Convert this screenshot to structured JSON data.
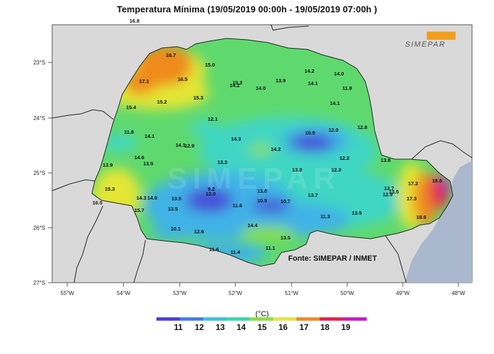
{
  "title": "Temperatura Mínima (19/05/2019 00:00h - 19/05/2019 07:00h )",
  "logo_text": "SIMEPAR",
  "watermark": "SIMEPAR",
  "source": "Fonte: SIMEPAR / INMET",
  "unit": "(°C)",
  "lat_labels": [
    "23°S",
    "24°S",
    "25°S",
    "26°S",
    "27°S"
  ],
  "lon_labels": [
    "55°W",
    "54°W",
    "53°W",
    "52°W",
    "51°W",
    "50°W",
    "49°W",
    "48°W"
  ],
  "colorbar": {
    "ticks": [
      "11",
      "12",
      "13",
      "14",
      "15",
      "16",
      "17",
      "18",
      "19"
    ],
    "colors": [
      "#4a3fd6",
      "#3d7fe6",
      "#36c2e0",
      "#33d8a8",
      "#8adf3a",
      "#e4e636",
      "#ef8a1e",
      "#e5204a",
      "#c418c8"
    ]
  },
  "stations": [
    {
      "id": "s1",
      "value": "16.8"
    },
    {
      "id": "s2",
      "value": "16.7"
    },
    {
      "id": "s3",
      "value": "17.1"
    },
    {
      "id": "s4",
      "value": "16.5"
    },
    {
      "id": "s5",
      "value": "15.0"
    },
    {
      "id": "s6",
      "value": "15.2"
    },
    {
      "id": "s7",
      "value": "14.2"
    },
    {
      "id": "s8",
      "value": "14.0"
    },
    {
      "id": "s9",
      "value": "13.9"
    },
    {
      "id": "s10",
      "value": "14.2"
    },
    {
      "id": "s11",
      "value": "14.0"
    },
    {
      "id": "s12",
      "value": "14.1"
    },
    {
      "id": "s13",
      "value": "11.8"
    },
    {
      "id": "s14",
      "value": "15.4"
    },
    {
      "id": "s15",
      "value": "15.2"
    },
    {
      "id": "s16",
      "value": "15.3"
    },
    {
      "id": "s17",
      "value": "14.1"
    },
    {
      "id": "s18",
      "value": "12.1"
    },
    {
      "id": "s19",
      "value": "10.9"
    },
    {
      "id": "s20",
      "value": "12.0"
    },
    {
      "id": "s21",
      "value": "12.8"
    },
    {
      "id": "s22",
      "value": "11.8"
    },
    {
      "id": "s23",
      "value": "14.1"
    },
    {
      "id": "s24",
      "value": "14.1"
    },
    {
      "id": "s25",
      "value": "12.9"
    },
    {
      "id": "s26",
      "value": "14.3"
    },
    {
      "id": "s27",
      "value": "14.2"
    },
    {
      "id": "s28",
      "value": "12.2"
    },
    {
      "id": "s29",
      "value": "13.9"
    },
    {
      "id": "s30",
      "value": "14.6"
    },
    {
      "id": "s31",
      "value": "13.5"
    },
    {
      "id": "s32",
      "value": "13.3"
    },
    {
      "id": "s33",
      "value": "13.0"
    },
    {
      "id": "s34",
      "value": "12.3"
    },
    {
      "id": "s35",
      "value": "13.8"
    },
    {
      "id": "s36",
      "value": "15.3"
    },
    {
      "id": "s37",
      "value": "9.2"
    },
    {
      "id": "s38",
      "value": "12.0"
    },
    {
      "id": "s39",
      "value": "13.0"
    },
    {
      "id": "s40",
      "value": "13.7"
    },
    {
      "id": "s41",
      "value": "13.7"
    },
    {
      "id": "s42",
      "value": "17.2"
    },
    {
      "id": "s43",
      "value": "13.5"
    },
    {
      "id": "s44",
      "value": "12.9"
    },
    {
      "id": "s45",
      "value": "18.6"
    },
    {
      "id": "s46",
      "value": "14.3"
    },
    {
      "id": "s47",
      "value": "14.9"
    },
    {
      "id": "s48",
      "value": "13.5"
    },
    {
      "id": "s49",
      "value": "10.5"
    },
    {
      "id": "s50",
      "value": "10.7"
    },
    {
      "id": "s51",
      "value": "17.3"
    },
    {
      "id": "s52",
      "value": "16.5"
    },
    {
      "id": "s53",
      "value": "15.7"
    },
    {
      "id": "s54",
      "value": "13.5"
    },
    {
      "id": "s55",
      "value": "11.6"
    },
    {
      "id": "s56",
      "value": "11.3"
    },
    {
      "id": "s57",
      "value": "13.5"
    },
    {
      "id": "s58",
      "value": "10.1"
    },
    {
      "id": "s59",
      "value": "12.6"
    },
    {
      "id": "s60",
      "value": "14.4"
    },
    {
      "id": "s61",
      "value": "13.5"
    },
    {
      "id": "s62",
      "value": "11.6"
    },
    {
      "id": "s63",
      "value": "11.4"
    },
    {
      "id": "s64",
      "value": "11.1"
    },
    {
      "id": "s65",
      "value": "18.6"
    }
  ]
}
